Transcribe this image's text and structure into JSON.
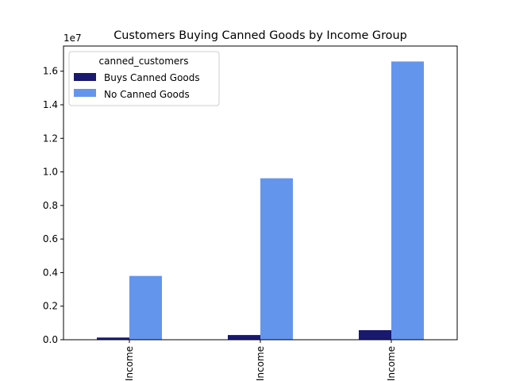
{
  "chart_data": {
    "type": "bar",
    "title": "Customers Buying Canned Goods by Income Group",
    "xlabel": "",
    "ylabel": "",
    "categories": [
      "Income",
      "Income",
      "Income"
    ],
    "y_scale_label": "1e7",
    "y_scale": 10000000,
    "ylim": [
      0,
      17500000
    ],
    "y_ticks": [
      0,
      2000000,
      4000000,
      6000000,
      8000000,
      10000000,
      12000000,
      14000000,
      16000000
    ],
    "y_tick_labels": [
      "0.0",
      "0.2",
      "0.4",
      "0.6",
      "0.8",
      "1.0",
      "1.2",
      "1.4",
      "1.6"
    ],
    "grid": false,
    "legend": {
      "title": "canned_customers",
      "placement": "top-left"
    },
    "series": [
      {
        "name": "Buys Canned Goods",
        "color": "#191970",
        "values": [
          130000,
          280000,
          570000
        ]
      },
      {
        "name": "No Canned Goods",
        "color": "#6495ED",
        "values": [
          3800000,
          9620000,
          16580000
        ]
      }
    ]
  }
}
